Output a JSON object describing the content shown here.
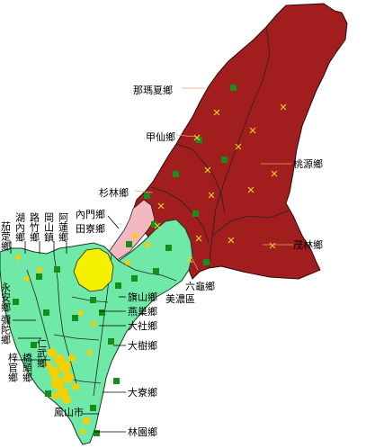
{
  "map": {
    "regions": {
      "namaxia": "那瑪夏鄉",
      "jiaxian": "甲仙鄉",
      "taoyuan": "桃源鄉",
      "shanlin": "杉林鄉",
      "maolin": "茂林鄉",
      "liugui": "六龜鄉",
      "meinong": "美濃區",
      "neimen": "內門鄉",
      "tianliao": "田寮鄉",
      "qishan": "旗山鄉",
      "yanchao": "燕巢鄉",
      "dashe": "大社鄉",
      "dashu": "大樹鄉",
      "daliao": "大寮鄉",
      "linyuan": "林園鄉",
      "fengshan": "鳳山市",
      "qieding": "茄萣鄉",
      "hunei": "湖內鄉",
      "luzhu": "路竹鄉",
      "gangshan": "岡山鎮",
      "alian": "阿蓮鄉",
      "yongan": "永安鄉",
      "mituo": "彌陀鄉",
      "ziguan": "梓官鄉",
      "qiaotou": "橋頭鄉",
      "renwu": "仁武鄉"
    },
    "colors": {
      "mountain_region": "#a21e1e",
      "plain_region": "#6fe8a8",
      "highlight_yellow": "#f5f000",
      "highlight_pink": "#f4b8c0",
      "city_yellow": "#f4d000",
      "station_marker": "#1a8c1a",
      "cross_marker": "#f0d020"
    }
  }
}
